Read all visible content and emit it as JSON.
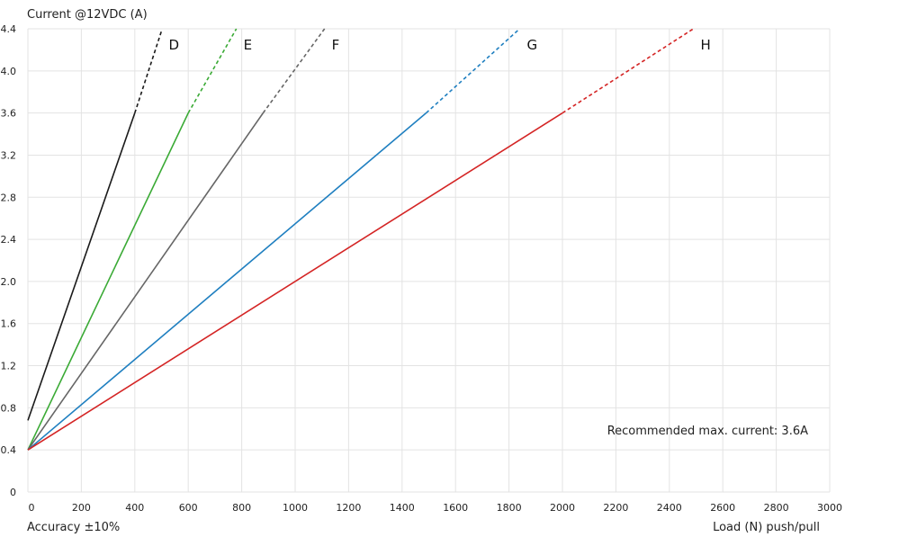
{
  "chart_data": {
    "type": "line",
    "ylabel": "Current @12VDC (A)",
    "xlabel": "Load (N) push/pull",
    "accuracy_note": "Accuracy ±10%",
    "annotation": "Recommended max. current: 3.6A",
    "xlim": [
      0,
      3000
    ],
    "ylim": [
      0,
      4.4
    ],
    "x_ticks": [
      "0",
      "200",
      "400",
      "600",
      "800",
      "1000",
      "1200",
      "1400",
      "1600",
      "1800",
      "2000",
      "2200",
      "2400",
      "2600",
      "2800",
      "3000"
    ],
    "y_ticks": [
      "0",
      "0.4",
      "0.8",
      "1.2",
      "1.6",
      "2.0",
      "2.4",
      "2.8",
      "3.2",
      "3.6",
      "4.0",
      "4.4"
    ],
    "grid": true,
    "recommended_max_current": 3.6,
    "series": [
      {
        "name": "D",
        "color": "#1a1a1a",
        "solid": [
          [
            0,
            0.68
          ],
          [
            400,
            3.6
          ]
        ],
        "dashed": [
          [
            400,
            3.6
          ],
          [
            500,
            4.38
          ]
        ]
      },
      {
        "name": "E",
        "color": "#3aaa35",
        "solid": [
          [
            0,
            0.4
          ],
          [
            600,
            3.6
          ]
        ],
        "dashed": [
          [
            600,
            3.6
          ],
          [
            780,
            4.4
          ]
        ]
      },
      {
        "name": "F",
        "color": "#666666",
        "solid": [
          [
            0,
            0.4
          ],
          [
            880,
            3.6
          ]
        ],
        "dashed": [
          [
            880,
            3.6
          ],
          [
            1110,
            4.4
          ]
        ]
      },
      {
        "name": "G",
        "color": "#1f7fc0",
        "solid": [
          [
            0,
            0.4
          ],
          [
            1490,
            3.6
          ]
        ],
        "dashed": [
          [
            1490,
            3.6
          ],
          [
            1840,
            4.4
          ]
        ]
      },
      {
        "name": "H",
        "color": "#d42424",
        "solid": [
          [
            0,
            0.4
          ],
          [
            2000,
            3.6
          ]
        ],
        "dashed": [
          [
            2000,
            3.6
          ],
          [
            2490,
            4.4
          ]
        ]
      }
    ]
  }
}
